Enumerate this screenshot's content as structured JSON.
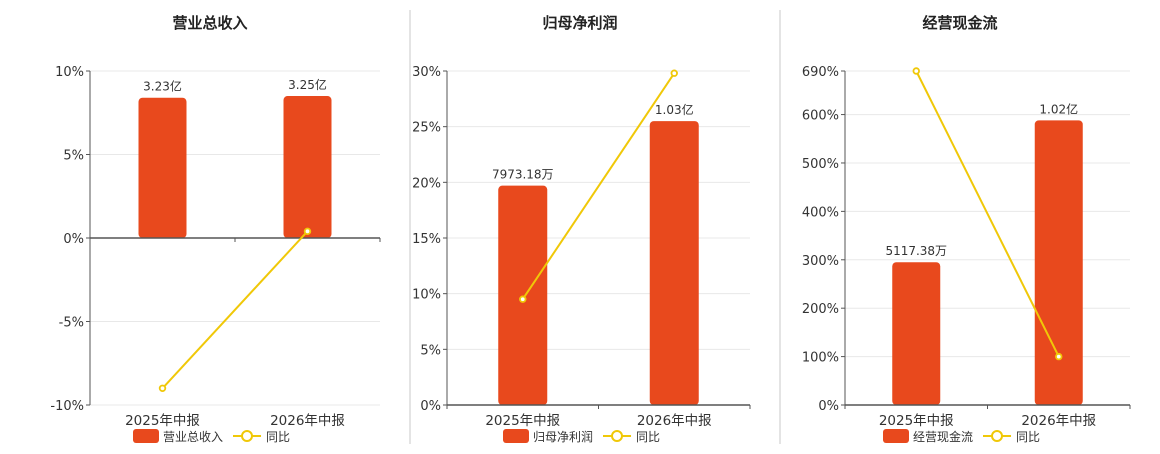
{
  "colors": {
    "bar": "#e8491d",
    "line": "#f0c808",
    "grid": "#e8e8e8",
    "axis": "#555555",
    "divider": "#c8c8c8"
  },
  "legend_line_label": "同比",
  "chart_data": [
    {
      "type": "bar",
      "title": "营业总收入",
      "categories": [
        "2025年中报",
        "2026年中报"
      ],
      "series": [
        {
          "name": "营业总收入",
          "type": "bar",
          "values": [
            3.23,
            3.25
          ],
          "labels": [
            "3.23亿",
            "3.25亿"
          ]
        },
        {
          "name": "同比",
          "type": "line",
          "values": [
            -9.0,
            0.4
          ]
        }
      ],
      "ylim": [
        -10,
        10
      ],
      "yticks": [
        -10,
        -5,
        0,
        5,
        10
      ],
      "ytick_labels": [
        "-10%",
        "-5%",
        "0%",
        "5%",
        "10%"
      ],
      "bar_pct": [
        8.4,
        8.5
      ]
    },
    {
      "type": "bar",
      "title": "归母净利润",
      "categories": [
        "2025年中报",
        "2026年中报"
      ],
      "series": [
        {
          "name": "归母净利润",
          "type": "bar",
          "values": [
            0.797318,
            1.03
          ],
          "labels": [
            "7973.18万",
            "1.03亿"
          ]
        },
        {
          "name": "同比",
          "type": "line",
          "values": [
            9.5,
            29.8
          ]
        }
      ],
      "ylim": [
        0,
        30
      ],
      "yticks": [
        0,
        5,
        10,
        15,
        20,
        25,
        30
      ],
      "ytick_labels": [
        "0%",
        "5%",
        "10%",
        "15%",
        "20%",
        "25%",
        "30%"
      ],
      "bar_pct": [
        19.7,
        25.5
      ]
    },
    {
      "type": "bar",
      "title": "经营现金流",
      "categories": [
        "2025年中报",
        "2026年中报"
      ],
      "series": [
        {
          "name": "经营现金流",
          "type": "bar",
          "values": [
            0.511738,
            1.02
          ],
          "labels": [
            "5117.38万",
            "1.02亿"
          ]
        },
        {
          "name": "同比",
          "type": "line",
          "values": [
            690,
            100
          ]
        }
      ],
      "ylim": [
        0,
        690
      ],
      "yticks": [
        0,
        100,
        200,
        300,
        400,
        500,
        600,
        690
      ],
      "ytick_labels": [
        "0%",
        "100%",
        "200%",
        "300%",
        "400%",
        "500%",
        "600%",
        "690%"
      ],
      "bar_pct": [
        295,
        588
      ]
    }
  ]
}
